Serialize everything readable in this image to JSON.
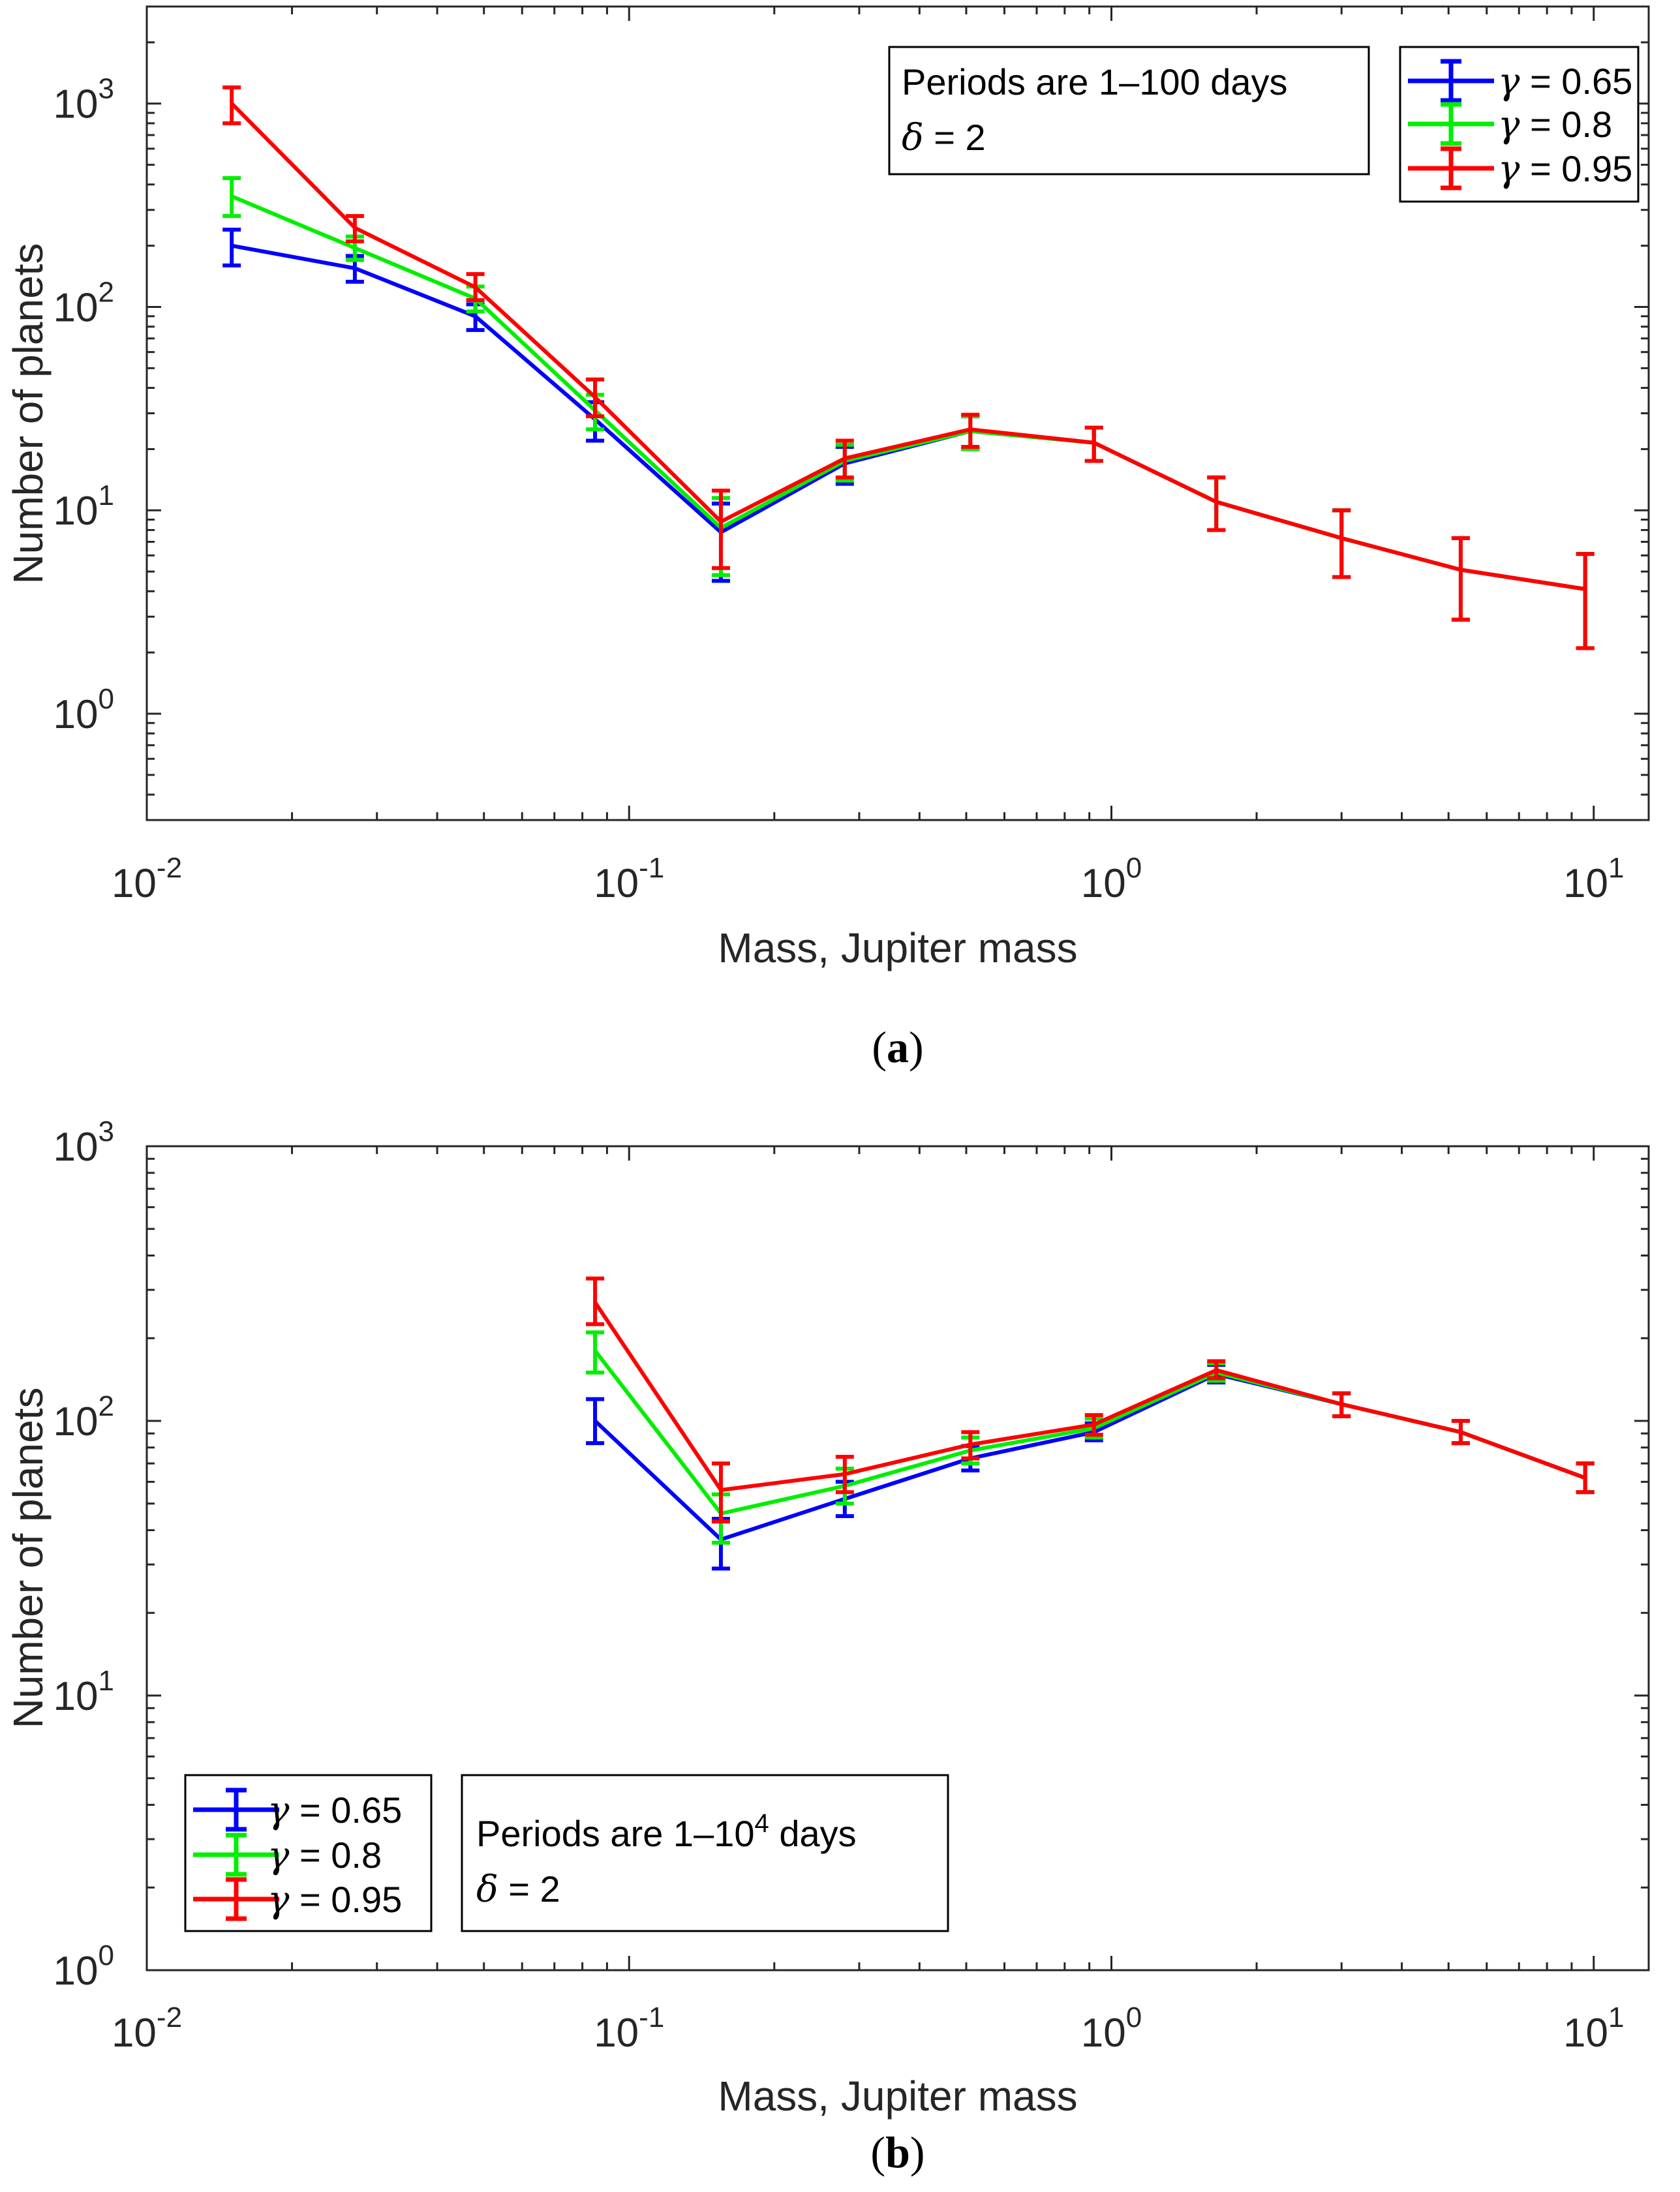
{
  "chart_data": [
    {
      "type": "line",
      "panel_caption": {
        "open": "(",
        "letter": "a",
        "close": ")"
      },
      "xscale": "log",
      "yscale": "log",
      "xlim": [
        0.01,
        13
      ],
      "ylim": [
        0.3,
        3000
      ],
      "xticks": [
        0.01,
        0.1,
        1,
        10
      ],
      "xtick_labels": [
        {
          "base": "10",
          "exp": "-2"
        },
        {
          "base": "10",
          "exp": "-1"
        },
        {
          "base": "10",
          "exp": "0"
        },
        {
          "base": "10",
          "exp": "1"
        }
      ],
      "yticks": [
        1,
        10,
        100,
        1000
      ],
      "ytick_labels": [
        {
          "base": "10",
          "exp": "0"
        },
        {
          "base": "10",
          "exp": "1"
        },
        {
          "base": "10",
          "exp": "2"
        },
        {
          "base": "10",
          "exp": "3"
        }
      ],
      "xlabel": "Mass, Jupiter mass",
      "ylabel": "Number of planets",
      "annotation": {
        "line1": "Periods are 1–100 days",
        "delta_symbol": "δ",
        "line2_rest": " = 2"
      },
      "legend_position": "top-right",
      "x": [
        0.015,
        0.027,
        0.048,
        0.085,
        0.155,
        0.28,
        0.51,
        0.92,
        1.65,
        3.0,
        5.3,
        9.6
      ],
      "series": [
        {
          "name": "0.65",
          "symbol": "γ",
          "label_rest": " = 0.65",
          "color": "#0000ff",
          "values": [
            200,
            155,
            90,
            28,
            7.8,
            17,
            24.5,
            21.5,
            11,
            7.3,
            5.1,
            4.1
          ],
          "err_low": [
            160,
            133,
            77,
            22,
            4.5,
            13.5,
            20,
            17.5,
            8,
            4.7,
            2.9,
            2.1
          ],
          "err_high": [
            240,
            178,
            103,
            34,
            10.8,
            20.5,
            29,
            25.5,
            14.5,
            10,
            7.3,
            6.1
          ]
        },
        {
          "name": "0.8",
          "symbol": "γ",
          "label_rest": " = 0.8",
          "color": "#00ee00",
          "values": [
            350,
            195,
            110,
            31,
            8.2,
            17.5,
            24.5,
            21.5,
            11,
            7.3,
            5.1,
            4.1
          ],
          "err_low": [
            280,
            170,
            95,
            25,
            4.8,
            14,
            20,
            17.5,
            8,
            4.7,
            2.9,
            2.1
          ],
          "err_high": [
            430,
            222,
            126,
            37,
            11.5,
            21,
            29,
            25.5,
            14.5,
            10,
            7.3,
            6.1
          ]
        },
        {
          "name": "0.95",
          "symbol": "γ",
          "label_rest": " = 0.95",
          "color": "#ff0000",
          "values": [
            1000,
            245,
            125,
            36,
            8.8,
            18,
            25,
            21.5,
            11,
            7.3,
            5.1,
            4.1
          ],
          "err_low": [
            800,
            210,
            108,
            29,
            5.2,
            14.5,
            20.5,
            17.5,
            8,
            4.7,
            2.9,
            2.1
          ],
          "err_high": [
            1200,
            280,
            145,
            44,
            12.5,
            22,
            29.5,
            25.5,
            14.5,
            10,
            7.3,
            6.1
          ]
        }
      ]
    },
    {
      "type": "line",
      "panel_caption": {
        "open": "(",
        "letter": "b",
        "close": ")"
      },
      "xscale": "log",
      "yscale": "log",
      "xlim": [
        0.01,
        13
      ],
      "ylim": [
        1,
        1000
      ],
      "xticks": [
        0.01,
        0.1,
        1,
        10
      ],
      "xtick_labels": [
        {
          "base": "10",
          "exp": "-2"
        },
        {
          "base": "10",
          "exp": "-1"
        },
        {
          "base": "10",
          "exp": "0"
        },
        {
          "base": "10",
          "exp": "1"
        }
      ],
      "yticks": [
        1,
        10,
        100,
        1000
      ],
      "ytick_labels": [
        {
          "base": "10",
          "exp": "0"
        },
        {
          "base": "10",
          "exp": "1"
        },
        {
          "base": "10",
          "exp": "2"
        },
        {
          "base": "10",
          "exp": "3"
        }
      ],
      "xlabel": "Mass, Jupiter mass",
      "ylabel": "Number of planets",
      "annotation": {
        "line1_pre": "Periods are 1–10",
        "line1_sup": "4",
        "line1_post": " days",
        "delta_symbol": "δ",
        "line2_rest": " = 2"
      },
      "legend_position": "bottom-left",
      "x": [
        0.085,
        0.155,
        0.28,
        0.51,
        0.92,
        1.65,
        3.0,
        5.3,
        9.6
      ],
      "series": [
        {
          "name": "0.65",
          "symbol": "γ",
          "label_rest": " = 0.65",
          "color": "#0000ff",
          "values": [
            100,
            37,
            52,
            73,
            91,
            148,
            115,
            91,
            62
          ],
          "err_low": [
            83,
            29,
            45,
            66,
            85,
            138,
            104,
            83,
            55
          ],
          "err_high": [
            120,
            44,
            60,
            81,
            98,
            160,
            126,
            100,
            70
          ]
        },
        {
          "name": "0.8",
          "symbol": "γ",
          "label_rest": " = 0.8",
          "color": "#00ee00",
          "values": [
            180,
            46,
            58,
            78,
            94,
            150,
            115,
            91,
            62
          ],
          "err_low": [
            150,
            36,
            50,
            70,
            87,
            140,
            104,
            83,
            55
          ],
          "err_high": [
            210,
            54,
            67,
            87,
            102,
            162,
            126,
            100,
            70
          ]
        },
        {
          "name": "0.95",
          "symbol": "γ",
          "label_rest": " = 0.95",
          "color": "#ff0000",
          "values": [
            270,
            56,
            64,
            82,
            97,
            153,
            115,
            91,
            62
          ],
          "err_low": [
            225,
            43,
            55,
            73,
            89,
            143,
            104,
            83,
            55
          ],
          "err_high": [
            330,
            70,
            74,
            91,
            105,
            165,
            126,
            100,
            70
          ]
        }
      ]
    }
  ]
}
